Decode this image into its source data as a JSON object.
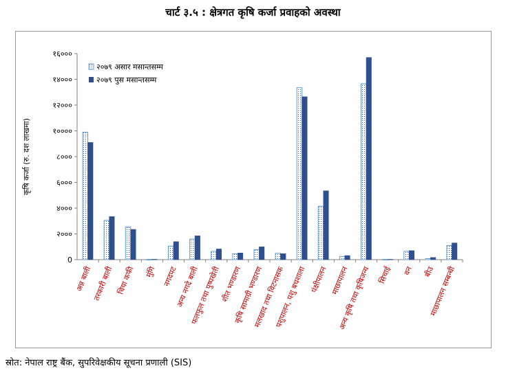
{
  "title": "चार्ट ३.५ : क्षेत्रगत कृषि कर्जा प्रवाहको अवस्था",
  "source": "स्रोत: नेपाल राष्ट्र बैंक, सुपरिवेक्षकीय सूचना प्रणाली (SIS)",
  "colors": {
    "series1": "#5b9bd5",
    "series2": "#2f4f8f",
    "category_label": "#c00000"
  },
  "chart_data": {
    "type": "bar",
    "ylabel": "कृषि कर्जा (रु. दश लाखमा)",
    "ylim": [
      0,
      16000
    ],
    "yticks": [
      0,
      2000,
      4000,
      6000,
      8000,
      10000,
      12000,
      14000,
      16000
    ],
    "ytick_labels": [
      "0",
      "२०००",
      "४०००",
      "६०००",
      "८०००",
      "१००००",
      "१२०००",
      "१४०००",
      "१६०००"
    ],
    "legend_position": "top-left",
    "grid": false,
    "categories": [
      "अन्न बाली",
      "तरकारी बाली",
      "चिया कफी",
      "मुंगि",
      "नगदपट",
      "अन्य नगदे बाली",
      "फलफुल तथा पुष्पखेती",
      "शीत भण्डारण",
      "कृषि सामाग्री भण्डारण",
      "मलखाद तथा विटनासक",
      "पशुपालन, पशु बधशाला",
      "पंक्षीपालन",
      "माछापालन",
      "अन्य कृषि तथा कृषिजन्य",
      "सिचाई",
      "वन",
      "बीउ",
      "माछापालन सम्बन्धी"
    ],
    "series": [
      {
        "name": "२०७९ असार मसान्तसम्म",
        "values": [
          9900,
          3050,
          2550,
          20,
          1050,
          1600,
          650,
          450,
          780,
          500,
          13350,
          4150,
          250,
          13650,
          20,
          650,
          80,
          1100
        ]
      },
      {
        "name": "२०७९ पुस मसान्तसम्म",
        "values": [
          9100,
          3350,
          2350,
          30,
          1400,
          1850,
          830,
          520,
          1000,
          470,
          12650,
          5350,
          320,
          15700,
          30,
          700,
          170,
          1300
        ]
      }
    ]
  }
}
